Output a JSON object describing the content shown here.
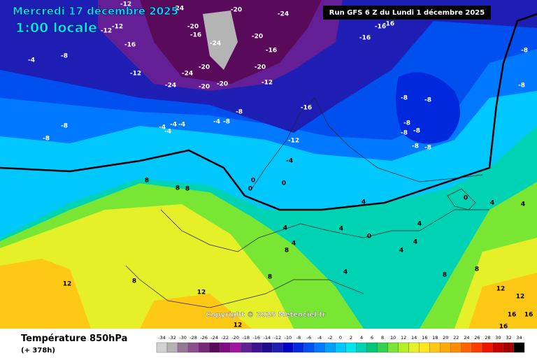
{
  "header": {
    "date": "Mercredi 17 décembre 2025",
    "time": "1:00 locale",
    "run": "Run GFS 6 Z du Lundi 1 décembre 2025"
  },
  "copyright": "Copyright © 2025 Meteociel.fr",
  "footer": {
    "title": "Température 850hPa",
    "lead": "(+ 378h)"
  },
  "legend": {
    "ticks": [
      -34,
      -32,
      -30,
      -28,
      -26,
      -24,
      -22,
      -20,
      -18,
      -16,
      -14,
      -12,
      -10,
      -8,
      -6,
      -4,
      -2,
      0,
      2,
      4,
      6,
      8,
      10,
      12,
      14,
      16,
      18,
      20,
      22,
      24,
      26,
      28,
      30,
      32,
      34
    ],
    "colors": [
      "#d2d2d2",
      "#b4b4b4",
      "#967896",
      "#8c508c",
      "#782878",
      "#5a0a5a",
      "#820a82",
      "#a014a0",
      "#641e96",
      "#3c148c",
      "#1e0a8c",
      "#1e1eb4",
      "#0000c8",
      "#0028dc",
      "#0050f0",
      "#0078ff",
      "#00a0ff",
      "#00c8ff",
      "#00e6f0",
      "#00d2b4",
      "#00c878",
      "#32d250",
      "#78e632",
      "#b4f028",
      "#e6f028",
      "#ffe61e",
      "#ffc814",
      "#ffaa0a",
      "#ff8c00",
      "#ff6400",
      "#ff3c00",
      "#f01400",
      "#c80000",
      "#a00000",
      "#000000"
    ]
  },
  "map_labels": [
    -12,
    -24,
    -20,
    -24,
    -12,
    -12,
    -16,
    -20,
    -16,
    -20,
    -16,
    -24,
    -8,
    -4,
    -12,
    -24,
    -20,
    -20,
    -12,
    -24,
    -20,
    -20,
    -16,
    -8,
    -8,
    -8,
    -4,
    -4,
    -4,
    -4,
    -4,
    -8,
    -12,
    -4,
    -8,
    -8,
    -8,
    -8,
    -8,
    -8,
    -8,
    -16,
    -16,
    -16,
    -8,
    -8,
    0,
    0,
    0,
    0,
    0,
    4,
    4,
    4,
    4,
    4,
    4,
    4,
    4,
    4,
    4,
    8,
    8,
    8,
    8,
    8,
    8,
    8,
    8,
    12,
    12,
    12,
    12,
    12,
    16,
    16,
    16
  ]
}
